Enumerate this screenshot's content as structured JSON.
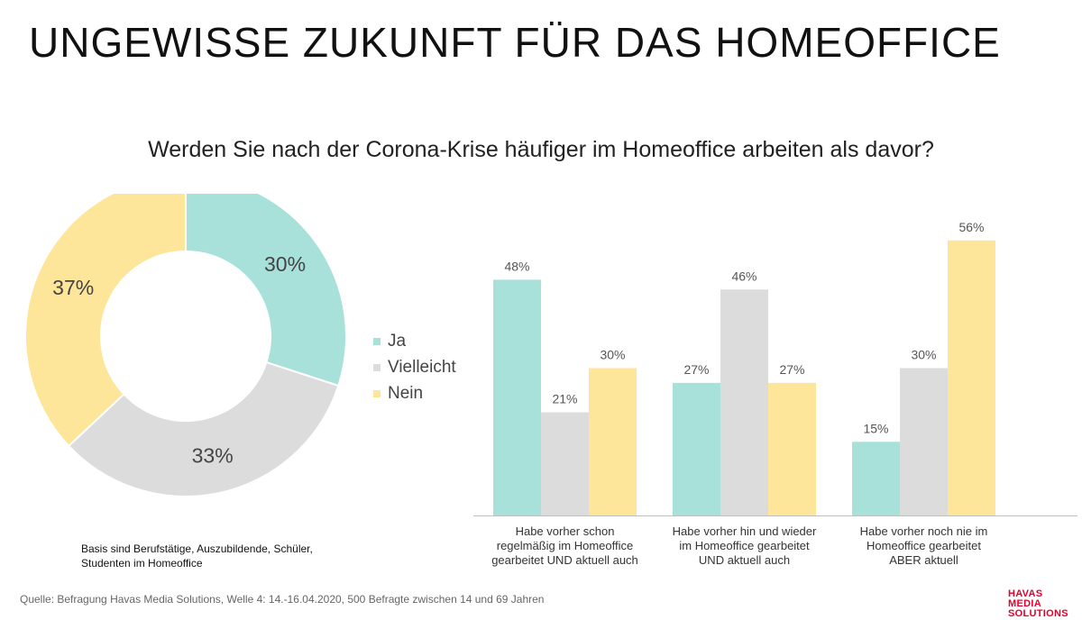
{
  "title": "UNGEWISSE ZUKUNFT FÜR DAS HOMEOFFICE",
  "question": "Werden Sie nach der Corona-Krise häufiger im Homeoffice arbeiten als davor?",
  "colors": {
    "ja": "#a8e1da",
    "vielleicht": "#dcdcdc",
    "nein": "#fde59a"
  },
  "basis_note": "Basis sind Berufstätige, Auszubildende, Schüler, Studenten im Homeoffice",
  "source": "Quelle: Befragung Havas Media Solutions, Welle 4: 14.-16.04.2020, 500 Befragte zwischen 14 und 69 Jahren",
  "logo": {
    "line1": "HAVAS MEDIA",
    "line2": "SOLUTIONS"
  },
  "chart_data": [
    {
      "type": "pie",
      "donut": true,
      "title": "",
      "slices": [
        {
          "name": "Ja",
          "value": 30,
          "label": "30%"
        },
        {
          "name": "Vielleicht",
          "value": 33,
          "label": "33%"
        },
        {
          "name": "Nein",
          "value": 37,
          "label": "37%"
        }
      ],
      "legend": {
        "placement": "right",
        "entries": [
          "Ja",
          "Vielleicht",
          "Nein"
        ]
      }
    },
    {
      "type": "bar",
      "title": "",
      "categories": [
        [
          "Habe vorher schon",
          "regelmäßig im Homeoffice",
          "gearbeitet UND aktuell auch"
        ],
        [
          "Habe vorher hin und wieder",
          "im Homeoffice gearbeitet",
          "UND aktuell auch"
        ],
        [
          "Habe vorher noch nie im",
          "Homeoffice gearbeitet",
          "ABER aktuell"
        ]
      ],
      "series": [
        {
          "name": "Ja",
          "values": [
            48,
            27,
            15
          ],
          "labels": [
            "48%",
            "27%",
            "15%"
          ]
        },
        {
          "name": "Vielleicht",
          "values": [
            21,
            46,
            30
          ],
          "labels": [
            "21%",
            "46%",
            "30%"
          ]
        },
        {
          "name": "Nein",
          "values": [
            30,
            27,
            56
          ],
          "labels": [
            "30%",
            "27%",
            "56%"
          ]
        }
      ],
      "ylim": [
        0,
        60
      ],
      "grid": false,
      "xlabel": "",
      "ylabel": ""
    }
  ]
}
